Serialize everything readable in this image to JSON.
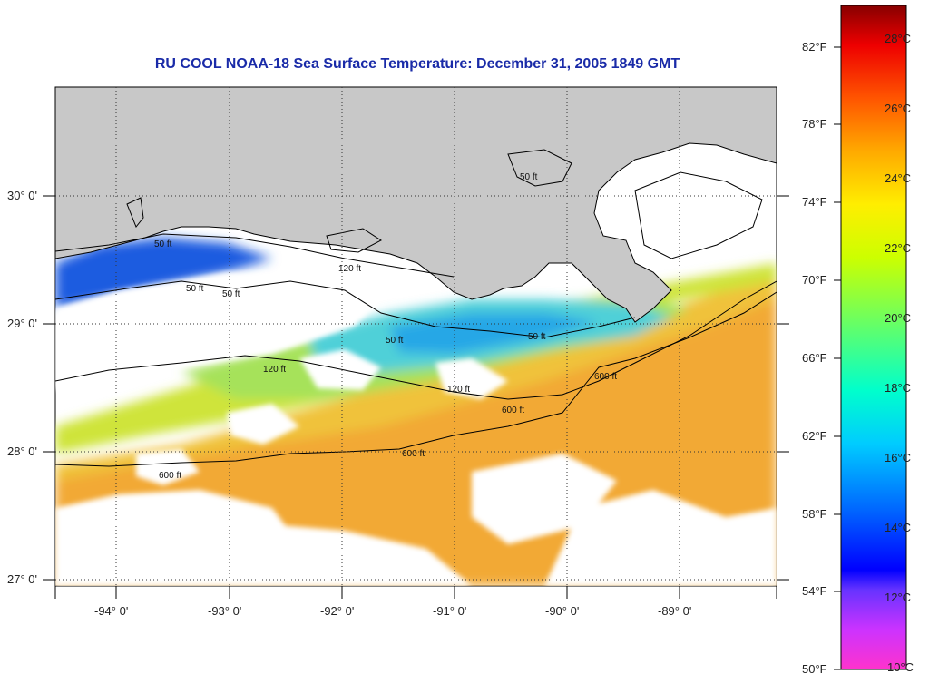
{
  "title": "RU COOL  NOAA-18  Sea Surface Temperature:  December 31, 2005 1849 GMT",
  "lat_labels": [
    "30° 0'",
    "29° 0'",
    "28° 0'",
    "27° 0'"
  ],
  "lon_labels": [
    "-94° 0'",
    "-93° 0'",
    "-92° 0'",
    "-91° 0'",
    "-90° 0'",
    "-89° 0'"
  ],
  "contour_labels": [
    "50 ft",
    "50 ft",
    "50 ft",
    "50 ft",
    "50 ft",
    "50 ft",
    "120 ft",
    "120 ft",
    "120 ft",
    "600 ft",
    "600 ft",
    "600 ft",
    "600 ft"
  ],
  "colorbar": {
    "fahrenheit_labels": [
      "82°F",
      "78°F",
      "74°F",
      "70°F",
      "66°F",
      "62°F",
      "58°F",
      "54°F",
      "50°F"
    ],
    "celsius_labels": [
      "28°C",
      "26°C",
      "24°C",
      "22°C",
      "20°C",
      "18°C",
      "16°C",
      "14°C",
      "12°C",
      "10°C"
    ],
    "range_c": [
      10,
      29
    ],
    "colors": [
      "#ff33cc",
      "#9933ff",
      "#0000ff",
      "#0099ff",
      "#00ffff",
      "#33ff99",
      "#ccff00",
      "#ffff00",
      "#ffcc00",
      "#ff6600",
      "#ff0000",
      "#990000"
    ]
  },
  "colors": {
    "land": "#c8c8c8",
    "cloud": "#ffffff",
    "title": "#1a2ba8"
  }
}
